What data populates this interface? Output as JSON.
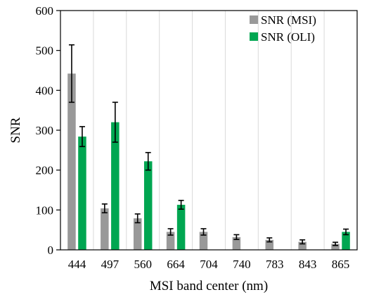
{
  "chart_data": {
    "type": "bar",
    "title": "",
    "xlabel": "MSI band center (nm)",
    "ylabel": "SNR",
    "ylim": [
      0,
      600
    ],
    "y_ticks": [
      0,
      100,
      200,
      300,
      400,
      500,
      600
    ],
    "categories": [
      "444",
      "497",
      "560",
      "664",
      "704",
      "740",
      "783",
      "843",
      "865"
    ],
    "grid": {
      "vertical": true,
      "horizontal": false
    },
    "legend_position": "top-right",
    "series": [
      {
        "name": "SNR (MSI)",
        "color": "#999999",
        "values": [
          442,
          104,
          79,
          45,
          45,
          32,
          25,
          20,
          15
        ],
        "error": [
          72,
          11,
          11,
          8,
          8,
          6,
          5,
          5,
          4
        ]
      },
      {
        "name": "SNR (OLI)",
        "color": "#00a651",
        "values": [
          284,
          320,
          222,
          113,
          null,
          null,
          null,
          null,
          45
        ],
        "error": [
          25,
          50,
          22,
          11,
          null,
          null,
          null,
          null,
          7
        ]
      }
    ]
  }
}
